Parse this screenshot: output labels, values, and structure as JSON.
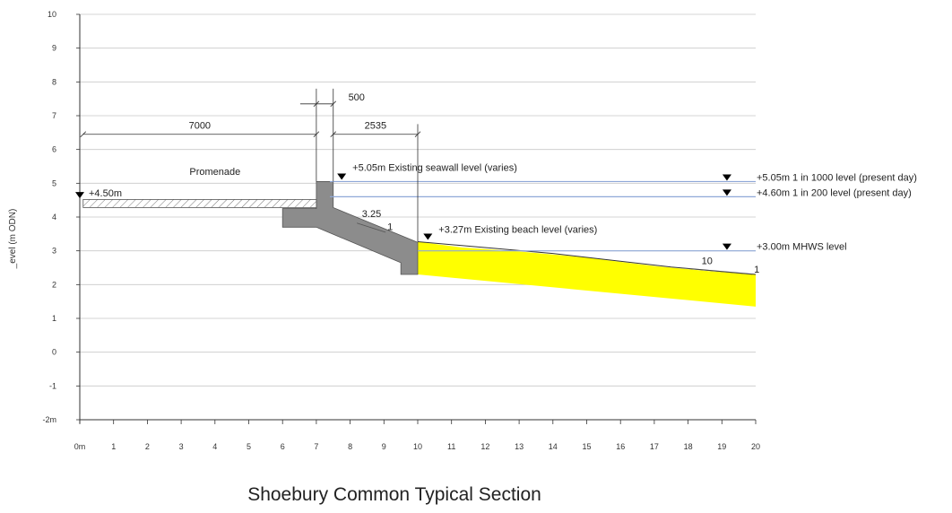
{
  "title": "Shoebury Common Typical Section",
  "chart_data": {
    "type": "cross-section",
    "ylabel": "_evel (m ODN)",
    "xlim": [
      0,
      20
    ],
    "ylim": [
      -2,
      10
    ],
    "x_ticks": [
      "0m",
      "1",
      "2",
      "3",
      "4",
      "5",
      "6",
      "7",
      "8",
      "9",
      "10",
      "11",
      "12",
      "13",
      "14",
      "15",
      "16",
      "17",
      "18",
      "19",
      "20"
    ],
    "y_ticks": [
      {
        "value": 10,
        "label": "10"
      },
      {
        "value": 9,
        "label": "9"
      },
      {
        "value": 8,
        "label": "8"
      },
      {
        "value": 7,
        "label": "7"
      },
      {
        "value": 6,
        "label": "6"
      },
      {
        "value": 5,
        "label": "5"
      },
      {
        "value": 4,
        "label": "4"
      },
      {
        "value": 3,
        "label": "3"
      },
      {
        "value": 2,
        "label": "2"
      },
      {
        "value": 1,
        "label": "1"
      },
      {
        "value": 0,
        "label": "0"
      },
      {
        "value": -1,
        "label": "-1"
      },
      {
        "value": -2,
        "label": "-2m"
      }
    ],
    "water_levels": [
      {
        "label": "+5.05m 1 in 1000 level (present day)",
        "level": 5.05,
        "x_start": 7.4
      },
      {
        "label": "+4.60m 1 in 200 level (present day)",
        "level": 4.6,
        "x_start": 7.4
      },
      {
        "label": "+3.00m MHWS level",
        "level": 3.0,
        "x_start": 10.0
      }
    ],
    "level_markers": [
      {
        "label": "+4.50m",
        "x": 0,
        "y": 4.5
      },
      {
        "label": "+5.05m Existing seawall level (varies)",
        "x": 7.75,
        "y": 5.05
      },
      {
        "label": "+3.27m Existing beach level (varies)",
        "x": 10.3,
        "y": 3.27
      }
    ],
    "dimensions": [
      {
        "label": "7000",
        "x1": 0.1,
        "x2": 7.0
      },
      {
        "label": "500",
        "x1": 7.0,
        "x2": 7.5
      },
      {
        "label": "2535",
        "x1": 7.5,
        "x2": 10.0
      }
    ],
    "slopes": [
      {
        "run": "3.25",
        "rise": "1"
      },
      {
        "run": "10",
        "rise": "1"
      }
    ],
    "labels": {
      "promenade": "Promenade"
    },
    "colors": {
      "gridline": "#c8c8c8",
      "water_line": "#8fa8d8",
      "concrete": "#8c8c8c",
      "beach_fill": "#ffff00",
      "axis": "#333333",
      "text": "#222222"
    }
  }
}
